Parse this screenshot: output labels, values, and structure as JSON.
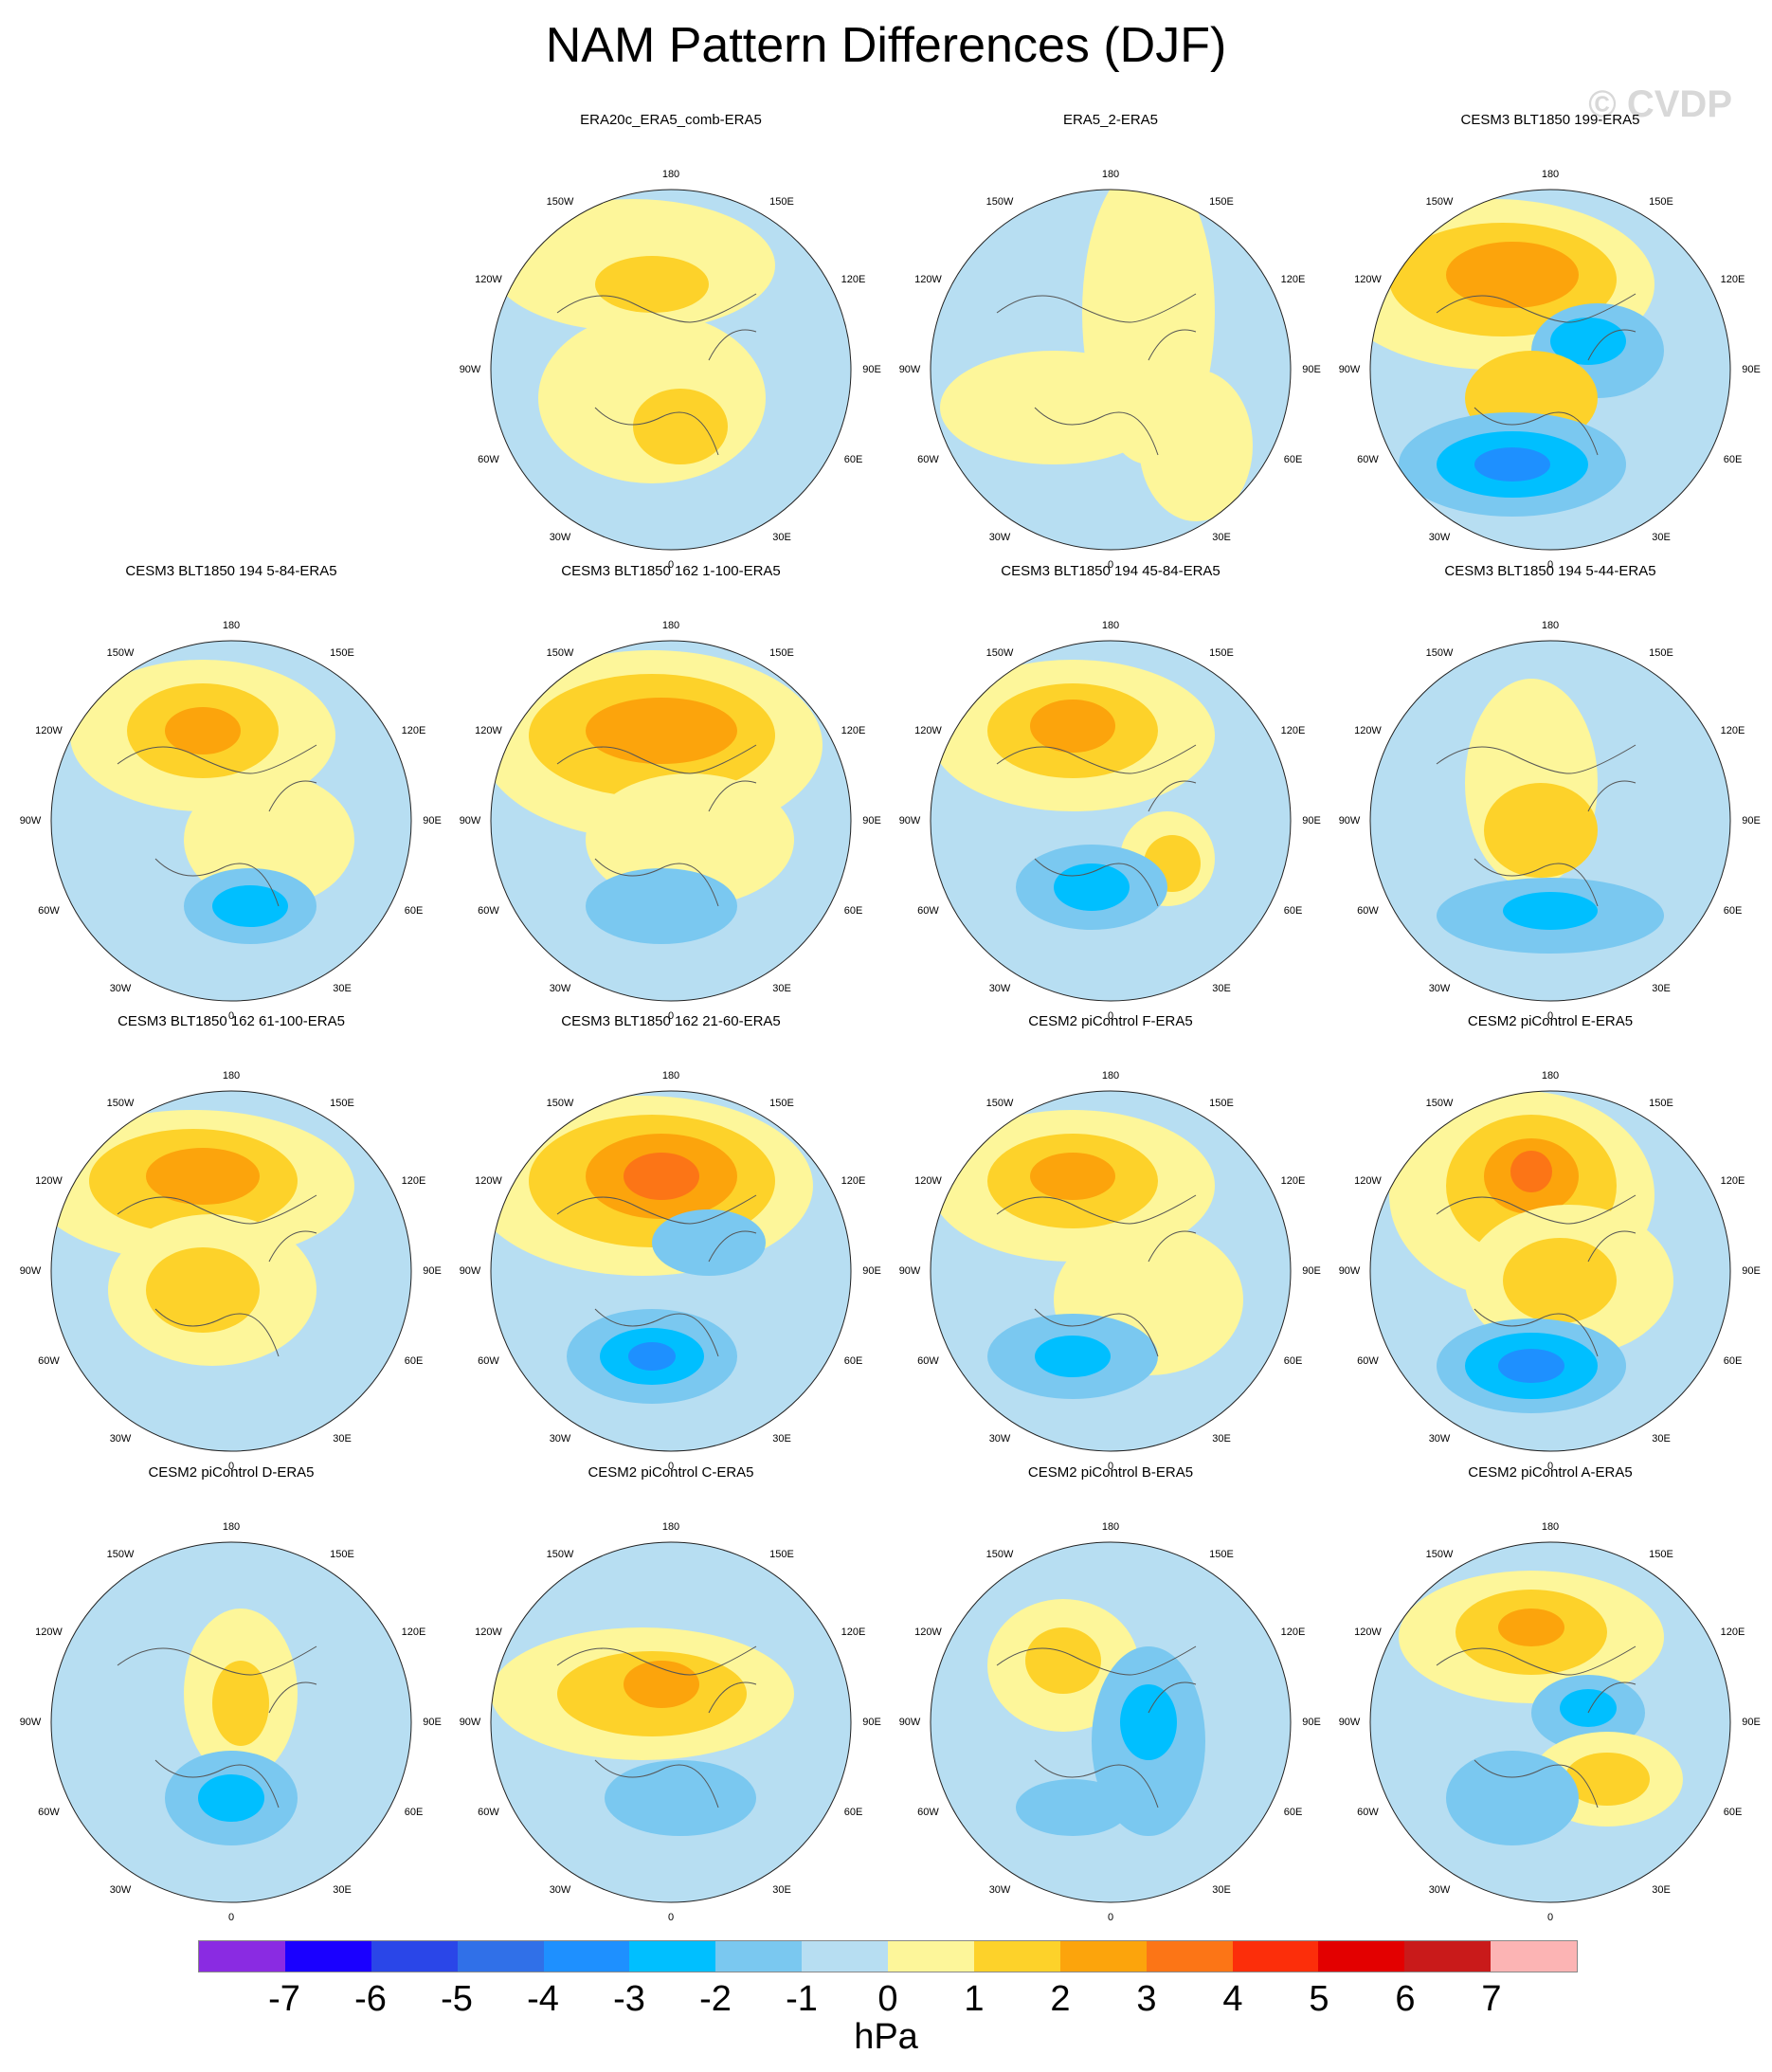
{
  "title": "NAM Pattern Differences (DJF)",
  "watermark": "© CVDP",
  "longitude_labels": {
    "top": "180",
    "upper_left": "150W",
    "upper_right": "150E",
    "mid_upper_left": "120W",
    "mid_upper_right": "120E",
    "left": "90W",
    "right": "90E",
    "mid_lower_left": "60W",
    "mid_lower_right": "60E",
    "lower_left": "30W",
    "lower_right": "30E",
    "bottom": "0"
  },
  "panels": [
    {
      "title": "ERA20c_ERA5_comb-ERA5",
      "row": 0,
      "col": 1
    },
    {
      "title": "ERA5_2-ERA5",
      "row": 0,
      "col": 2
    },
    {
      "title": "CESM3 BLT1850 199-ERA5",
      "row": 0,
      "col": 3
    },
    {
      "title": "CESM3 BLT1850 194 5-84-ERA5",
      "row": 1,
      "col": 0
    },
    {
      "title": "CESM3 BLT1850 162 1-100-ERA5",
      "row": 1,
      "col": 1
    },
    {
      "title": "CESM3 BLT1850 194 45-84-ERA5",
      "row": 1,
      "col": 2
    },
    {
      "title": "CESM3 BLT1850 194 5-44-ERA5",
      "row": 1,
      "col": 3
    },
    {
      "title": "CESM3 BLT1850 162 61-100-ERA5",
      "row": 2,
      "col": 0
    },
    {
      "title": "CESM3 BLT1850 162 21-60-ERA5",
      "row": 2,
      "col": 1
    },
    {
      "title": "CESM2 piControl F-ERA5",
      "row": 2,
      "col": 2
    },
    {
      "title": "CESM2 piControl E-ERA5",
      "row": 2,
      "col": 3
    },
    {
      "title": "CESM2 piControl D-ERA5",
      "row": 3,
      "col": 0
    },
    {
      "title": "CESM2 piControl C-ERA5",
      "row": 3,
      "col": 1
    },
    {
      "title": "CESM2 piControl B-ERA5",
      "row": 3,
      "col": 2
    },
    {
      "title": "CESM2 piControl A-ERA5",
      "row": 3,
      "col": 3
    }
  ],
  "colorbar": {
    "colors": [
      "#8a2be2",
      "#1a00ff",
      "#2a46e8",
      "#3070e8",
      "#1e90ff",
      "#00bfff",
      "#7ac8f0",
      "#b7def2",
      "#fdf69a",
      "#fdd22a",
      "#fca40c",
      "#fc7516",
      "#fc2e0a",
      "#e30000",
      "#c91a1a",
      "#fcb4b4"
    ],
    "labels": [
      "-7",
      "-6",
      "-5",
      "-4",
      "-3",
      "-2",
      "-1",
      "0",
      "1",
      "2",
      "3",
      "4",
      "5",
      "6",
      "7"
    ],
    "units": "hPa"
  }
}
